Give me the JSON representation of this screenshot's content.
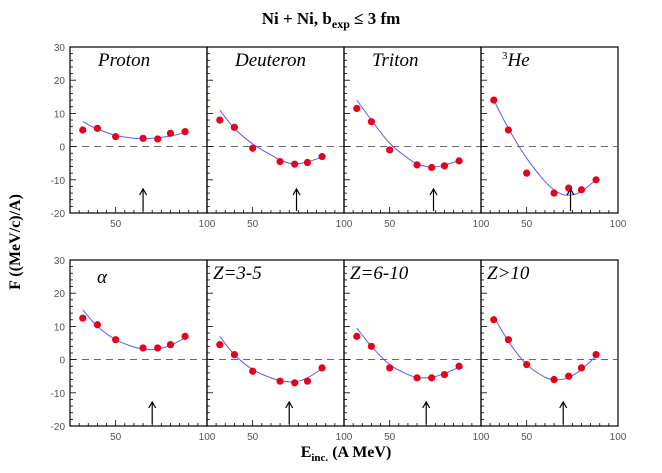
{
  "title": {
    "main": "Ni + Ni, b",
    "sub": "exp",
    "rest": " ≤ 3 fm"
  },
  "ylabel": "F ((MeV/c)/A)",
  "xlabel": {
    "main": "E",
    "sub": "inc.",
    "rest": " (A MeV)"
  },
  "colors": {
    "points": "#e8001c",
    "fit": "#5a5aff",
    "frame": "#000000",
    "zero_line": "#555555"
  },
  "chart_data": [
    {
      "type": "scatter",
      "label": "Proton",
      "xlim": [
        25,
        100
      ],
      "ylim": [
        -20,
        30
      ],
      "x_ticks": [
        50,
        100
      ],
      "y_ticks": [
        -20,
        -10,
        0,
        10,
        20,
        30
      ],
      "points": {
        "x": [
          32,
          40,
          50,
          65,
          73,
          80,
          88
        ],
        "y": [
          5.0,
          5.5,
          3.0,
          2.5,
          2.3,
          4.0,
          4.5
        ]
      },
      "fit": {
        "x": [
          32,
          40,
          50,
          60,
          65,
          70,
          80,
          88
        ],
        "y": [
          7.5,
          5.3,
          3.4,
          2.5,
          2.4,
          2.5,
          3.2,
          4.2
        ]
      },
      "arrow_x": 65
    },
    {
      "type": "scatter",
      "label": "Deuteron",
      "xlim": [
        25,
        100
      ],
      "ylim": [
        -20,
        30
      ],
      "x_ticks": [
        50,
        100
      ],
      "y_ticks": [
        -20,
        -10,
        0,
        10,
        20,
        30
      ],
      "points": {
        "x": [
          32,
          40,
          50,
          65,
          73,
          80,
          88
        ],
        "y": [
          8.0,
          5.8,
          -0.5,
          -4.5,
          -5.3,
          -4.8,
          -3.0
        ]
      },
      "fit": {
        "x": [
          32,
          40,
          50,
          60,
          65,
          70,
          75,
          80,
          88
        ],
        "y": [
          11.0,
          5.5,
          0.8,
          -2.5,
          -4.0,
          -5.0,
          -5.2,
          -4.6,
          -3.2
        ]
      },
      "arrow_x": 74
    },
    {
      "type": "scatter",
      "label": "Triton",
      "xlim": [
        25,
        100
      ],
      "ylim": [
        -20,
        30
      ],
      "x_ticks": [
        50,
        100
      ],
      "y_ticks": [
        -20,
        -10,
        0,
        10,
        20,
        30
      ],
      "points": {
        "x": [
          32,
          40,
          50,
          65,
          73,
          80,
          88
        ],
        "y": [
          11.5,
          7.5,
          -1.0,
          -5.5,
          -6.3,
          -5.8,
          -4.3
        ]
      },
      "fit": {
        "x": [
          32,
          40,
          50,
          60,
          65,
          70,
          75,
          80,
          88
        ],
        "y": [
          14.0,
          8.0,
          1.0,
          -3.5,
          -5.2,
          -6.0,
          -6.1,
          -5.6,
          -4.2
        ]
      },
      "arrow_x": 74
    },
    {
      "type": "scatter",
      "label": "3He",
      "label_sup": "3",
      "label_text": "He",
      "xlim": [
        25,
        100
      ],
      "ylim": [
        -20,
        30
      ],
      "x_ticks": [
        50,
        100
      ],
      "y_ticks": [
        -20,
        -10,
        0,
        10,
        20,
        30
      ],
      "points": {
        "x": [
          32,
          40,
          50,
          65,
          73,
          80,
          88
        ],
        "y": [
          14.0,
          5.0,
          -8.0,
          -14.0,
          -12.5,
          -13.0,
          -10.0
        ]
      },
      "fit": {
        "x": [
          32,
          40,
          50,
          60,
          65,
          70,
          75,
          80,
          88
        ],
        "y": [
          14.0,
          5.5,
          -3.5,
          -10.5,
          -13.0,
          -14.5,
          -14.5,
          -13.5,
          -10.0
        ]
      },
      "arrow_x": 74
    },
    {
      "type": "scatter",
      "label": "α",
      "xlim": [
        25,
        100
      ],
      "ylim": [
        -20,
        30
      ],
      "x_ticks": [
        50,
        100
      ],
      "y_ticks": [
        -20,
        -10,
        0,
        10,
        20,
        30
      ],
      "points": {
        "x": [
          32,
          40,
          50,
          65,
          73,
          80,
          88
        ],
        "y": [
          12.5,
          10.5,
          6.0,
          3.5,
          3.5,
          4.5,
          7.0
        ]
      },
      "fit": {
        "x": [
          32,
          40,
          50,
          60,
          65,
          70,
          75,
          80,
          88
        ],
        "y": [
          15.0,
          10.0,
          6.0,
          3.8,
          3.2,
          3.0,
          3.4,
          4.3,
          6.5
        ]
      },
      "arrow_x": 70
    },
    {
      "type": "scatter",
      "label": "Z=3-5",
      "xlim": [
        25,
        100
      ],
      "ylim": [
        -20,
        30
      ],
      "x_ticks": [
        50,
        100
      ],
      "y_ticks": [
        -20,
        -10,
        0,
        10,
        20,
        30
      ],
      "points": {
        "x": [
          32,
          40,
          50,
          65,
          73,
          80,
          88
        ],
        "y": [
          4.5,
          1.5,
          -3.5,
          -6.5,
          -7.0,
          -6.5,
          -2.5
        ]
      },
      "fit": {
        "x": [
          32,
          40,
          50,
          60,
          65,
          70,
          75,
          80,
          88
        ],
        "y": [
          7.0,
          1.5,
          -3.0,
          -5.5,
          -6.3,
          -6.7,
          -6.5,
          -5.5,
          -2.8
        ]
      },
      "arrow_x": 70
    },
    {
      "type": "scatter",
      "label": "Z=6-10",
      "xlim": [
        25,
        100
      ],
      "ylim": [
        -20,
        30
      ],
      "x_ticks": [
        50,
        100
      ],
      "y_ticks": [
        -20,
        -10,
        0,
        10,
        20,
        30
      ],
      "points": {
        "x": [
          32,
          40,
          50,
          65,
          73,
          80,
          88
        ],
        "y": [
          7.0,
          4.0,
          -2.5,
          -5.5,
          -5.5,
          -4.5,
          -2.0
        ]
      },
      "fit": {
        "x": [
          32,
          40,
          50,
          60,
          65,
          70,
          75,
          80,
          88
        ],
        "y": [
          9.5,
          4.0,
          -1.5,
          -4.5,
          -5.3,
          -5.5,
          -5.1,
          -4.2,
          -2.3
        ]
      },
      "arrow_x": 70
    },
    {
      "type": "scatter",
      "label": "Z>10",
      "xlim": [
        25,
        100
      ],
      "ylim": [
        -20,
        30
      ],
      "x_ticks": [
        50,
        100
      ],
      "y_ticks": [
        -20,
        -10,
        0,
        10,
        20,
        30
      ],
      "points": {
        "x": [
          32,
          40,
          50,
          65,
          73,
          80,
          88
        ],
        "y": [
          12.0,
          6.0,
          -1.5,
          -6.0,
          -5.0,
          -2.5,
          1.5
        ]
      },
      "fit": {
        "x": [
          32,
          40,
          50,
          60,
          65,
          70,
          75,
          80,
          88
        ],
        "y": [
          13.0,
          5.5,
          -1.5,
          -5.3,
          -6.0,
          -5.9,
          -4.8,
          -3.0,
          1.0
        ]
      },
      "arrow_x": 70
    }
  ]
}
